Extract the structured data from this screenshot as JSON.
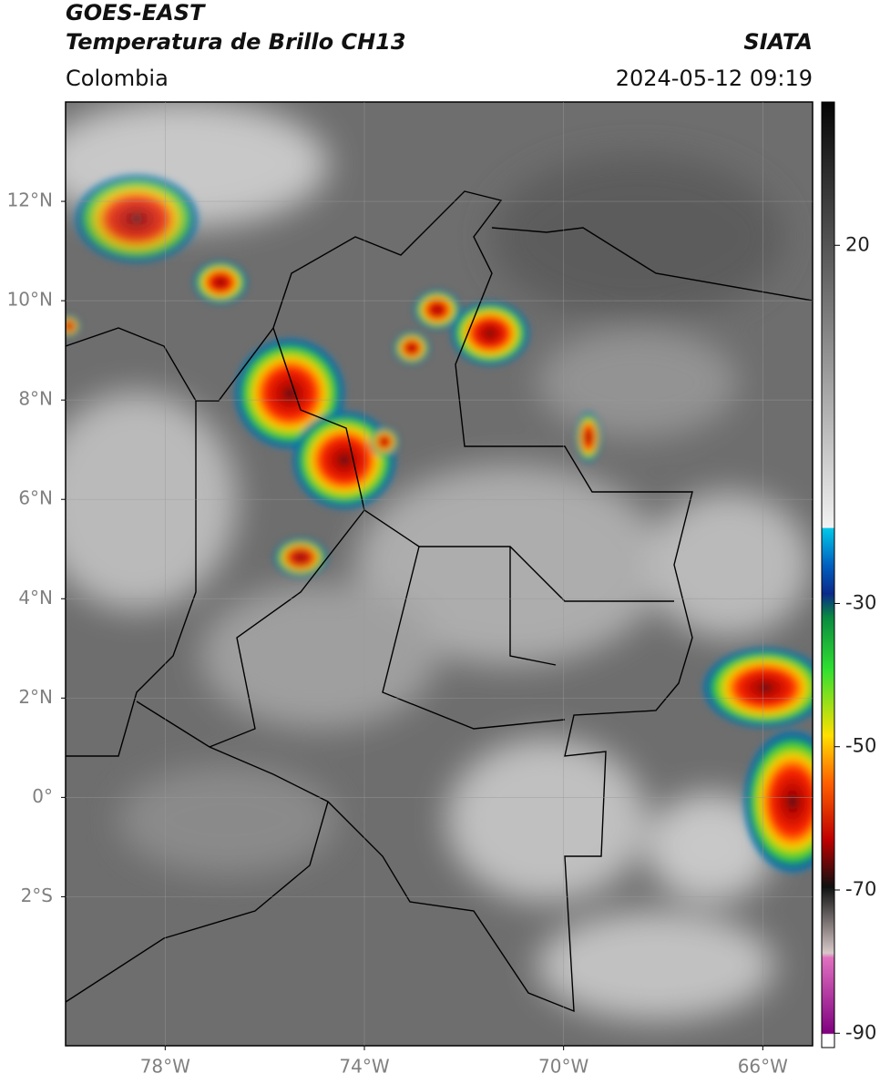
{
  "header": {
    "title": "GOES-EAST",
    "subtitle": "Temperatura de Brillo CH13",
    "region": "Colombia",
    "source": "SIATA",
    "datetime": "2024-05-12 09:19"
  },
  "map": {
    "xlim": [
      -80,
      -65
    ],
    "ylim": [
      -5,
      14
    ],
    "xticks": [
      {
        "value": -78,
        "label": "78°W"
      },
      {
        "value": -74,
        "label": "74°W"
      },
      {
        "value": -70,
        "label": "70°W"
      },
      {
        "value": -66,
        "label": "66°W"
      }
    ],
    "yticks": [
      {
        "value": 12,
        "label": "12°N"
      },
      {
        "value": 10,
        "label": "10°N"
      },
      {
        "value": 8,
        "label": "8°N"
      },
      {
        "value": 6,
        "label": "6°N"
      },
      {
        "value": 4,
        "label": "4°N"
      },
      {
        "value": 2,
        "label": "2°N"
      },
      {
        "value": 0,
        "label": "0°"
      },
      {
        "value": -2,
        "label": "2°S"
      }
    ],
    "grid": true
  },
  "colorbar": {
    "lim": [
      -92,
      40
    ],
    "ticks": [
      20,
      -30,
      -50,
      -70,
      -90
    ]
  }
}
